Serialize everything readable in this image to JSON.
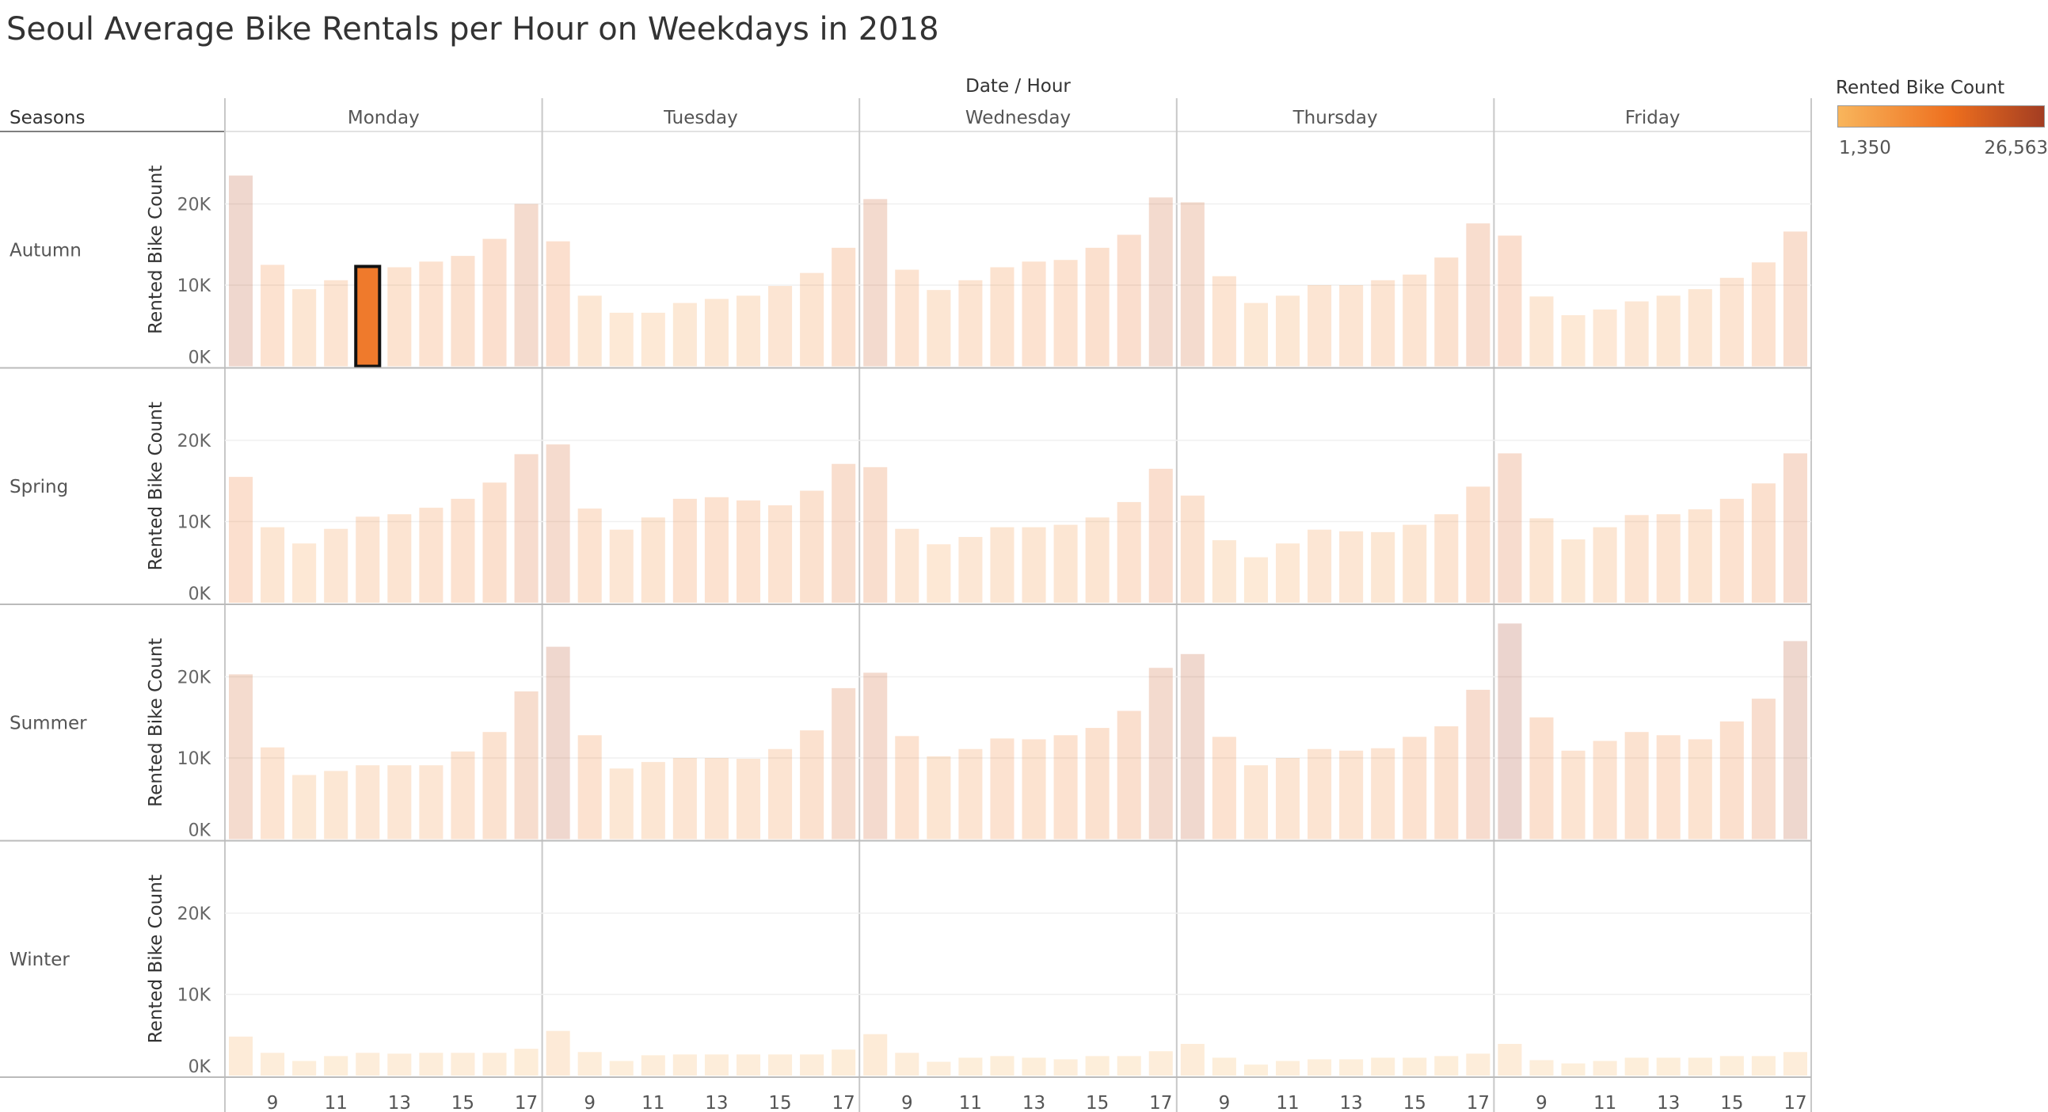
{
  "title": "Seoul Average Bike Rentals per Hour on Weekdays in 2018",
  "colors": {
    "scale_low": "#f8b55c",
    "scale_mid": "#ee6f1e",
    "scale_high": "#a33d22",
    "highlight": "#ef7a2c"
  },
  "legend": {
    "title": "Rented Bike Count",
    "min_label": "1,350",
    "max_label": "26,563"
  },
  "chart_data": {
    "type": "bar",
    "title": "Seoul Average Bike Rentals per Hour on Weekdays in 2018",
    "column_header": "Date  /  Hour",
    "row_header": "Seasons",
    "ylabel": "Rented Bike Count",
    "ylim": [
      0,
      26000
    ],
    "yticks": [
      0,
      10000,
      20000
    ],
    "ytick_labels": [
      "0K",
      "10K",
      "20K"
    ],
    "hours": [
      8,
      9,
      10,
      11,
      12,
      13,
      14,
      15,
      16,
      17
    ],
    "xtick_labels": [
      "9",
      "11",
      "13",
      "15",
      "17"
    ],
    "days": [
      "Monday",
      "Tuesday",
      "Wednesday",
      "Thursday",
      "Friday"
    ],
    "seasons": [
      "Autumn",
      "Spring",
      "Summer",
      "Winter"
    ],
    "highlighted": {
      "season": "Autumn",
      "day": "Monday",
      "hour": 12
    },
    "values": {
      "Autumn": {
        "Monday": [
          23500,
          12500,
          9500,
          10600,
          12300,
          12200,
          12900,
          13600,
          15700,
          20000
        ],
        "Tuesday": [
          15400,
          8700,
          6600,
          6600,
          7800,
          8300,
          8700,
          9900,
          11500,
          14600
        ],
        "Wednesday": [
          20600,
          11900,
          9400,
          10600,
          12200,
          12900,
          13100,
          14600,
          16200,
          20800
        ],
        "Thursday": [
          20200,
          11100,
          7800,
          8700,
          10000,
          10000,
          10600,
          11300,
          13400,
          17600
        ],
        "Friday": [
          16100,
          8600,
          6300,
          7000,
          8000,
          8700,
          9500,
          10900,
          12800,
          16600
        ]
      },
      "Spring": {
        "Monday": [
          15500,
          9300,
          7300,
          9100,
          10600,
          10900,
          11700,
          12800,
          14800,
          18300
        ],
        "Tuesday": [
          19500,
          11600,
          9000,
          10500,
          12800,
          13000,
          12600,
          12000,
          13800,
          17100
        ],
        "Wednesday": [
          16700,
          9100,
          7200,
          8100,
          9300,
          9300,
          9600,
          10500,
          12400,
          16500
        ],
        "Thursday": [
          13200,
          7700,
          5600,
          7300,
          9000,
          8800,
          8700,
          9600,
          10900,
          14300
        ],
        "Friday": [
          18400,
          10400,
          7800,
          9300,
          10800,
          10900,
          11500,
          12800,
          14700,
          18400
        ]
      },
      "Summer": {
        "Monday": [
          20300,
          11300,
          7900,
          8400,
          9100,
          9100,
          9100,
          10800,
          13200,
          18200
        ],
        "Tuesday": [
          23700,
          12800,
          8700,
          9500,
          10000,
          10000,
          9900,
          11100,
          13400,
          18600
        ],
        "Wednesday": [
          20500,
          12700,
          10200,
          11100,
          12400,
          12300,
          12800,
          13700,
          15800,
          21100
        ],
        "Thursday": [
          22800,
          12600,
          9100,
          10000,
          11100,
          10900,
          11200,
          12600,
          13900,
          18400
        ],
        "Friday": [
          26563,
          15000,
          10900,
          12100,
          13200,
          12800,
          12300,
          14500,
          17300,
          24400
        ]
      },
      "Winter": {
        "Monday": [
          4800,
          2800,
          1800,
          2400,
          2800,
          2700,
          2800,
          2800,
          2800,
          3300
        ],
        "Tuesday": [
          5500,
          2900,
          1800,
          2500,
          2600,
          2600,
          2600,
          2600,
          2600,
          3200
        ],
        "Wednesday": [
          5100,
          2800,
          1700,
          2200,
          2400,
          2200,
          2000,
          2400,
          2400,
          3000
        ],
        "Thursday": [
          3900,
          2200,
          1350,
          1800,
          2000,
          2000,
          2200,
          2200,
          2400,
          2700
        ],
        "Friday": [
          3900,
          1900,
          1500,
          1800,
          2200,
          2200,
          2200,
          2400,
          2400,
          2900
        ]
      }
    }
  }
}
